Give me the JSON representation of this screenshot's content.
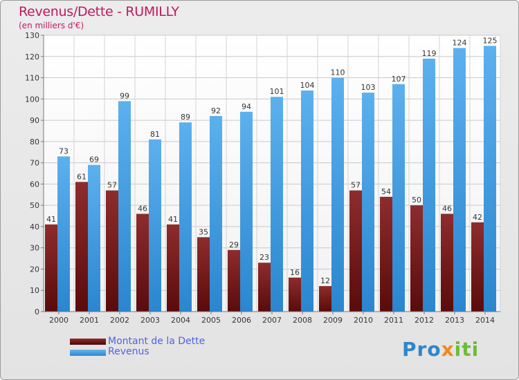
{
  "chart_data": {
    "type": "bar",
    "title": "Revenus/Dette - RUMILLY",
    "subtitle": "(en milliers d'€)",
    "categories": [
      "2000",
      "2001",
      "2002",
      "2003",
      "2004",
      "2005",
      "2006",
      "2007",
      "2008",
      "2009",
      "2010",
      "2011",
      "2012",
      "2013",
      "2014"
    ],
    "series": [
      {
        "name": "Montant de la Dette",
        "color": "#7a1d1d",
        "values": [
          41,
          61,
          57,
          46,
          41,
          35,
          29,
          23,
          16,
          12,
          57,
          54,
          50,
          46,
          42
        ]
      },
      {
        "name": "Revenus",
        "color": "#3f9ae0",
        "values": [
          73,
          69,
          99,
          81,
          89,
          92,
          94,
          101,
          104,
          110,
          103,
          107,
          119,
          124,
          125
        ]
      }
    ],
    "ylim": [
      0,
      130
    ],
    "yticks": [
      0,
      10,
      20,
      30,
      40,
      50,
      60,
      70,
      80,
      90,
      100,
      110,
      120,
      130
    ],
    "grid": true,
    "legend": "bottom-left"
  },
  "logo": {
    "p1": "Pro",
    "p2": "x",
    "p3": "iti"
  }
}
